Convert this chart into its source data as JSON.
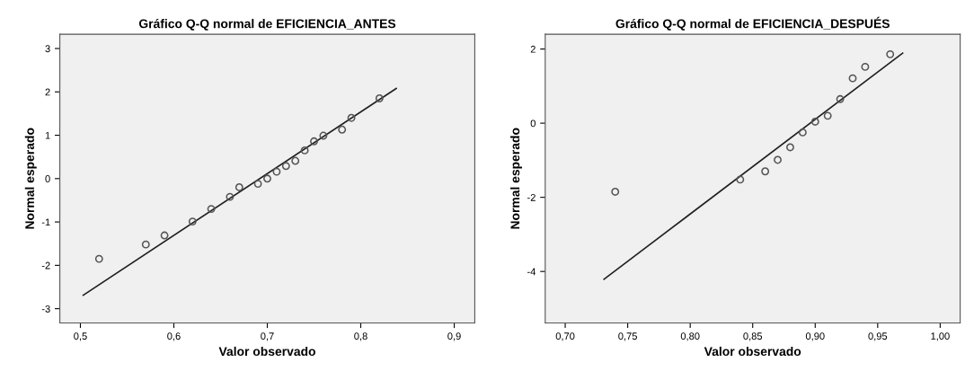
{
  "chart_data": [
    {
      "type": "scatter",
      "title": "Gráfico Q-Q normal de EFICIENCIA_ANTES",
      "xlabel": "Valor observado",
      "ylabel": "Normal esperado",
      "grid": false,
      "legend": false,
      "series": [
        {
          "marker": "circle",
          "color": "#555555",
          "x": [
            0.52,
            0.57,
            0.59,
            0.62,
            0.64,
            0.66,
            0.67,
            0.69,
            0.7,
            0.71,
            0.72,
            0.73,
            0.74,
            0.75,
            0.76,
            0.78,
            0.79,
            0.82
          ],
          "values": [
            -1.85,
            -1.52,
            -1.31,
            -0.99,
            -0.7,
            -0.42,
            -0.2,
            -0.12,
            0.0,
            0.16,
            0.29,
            0.41,
            0.65,
            0.86,
            0.99,
            1.13,
            1.4,
            1.85
          ]
        },
        {
          "type": "line",
          "marker": "none",
          "color": "#222222",
          "x": [
            0.503,
            0.838
          ],
          "values": [
            -2.69,
            2.08
          ]
        }
      ],
      "xlim": [
        0.478,
        0.922
      ],
      "xticks": [
        {
          "value": 0.5,
          "label": "0,5"
        },
        {
          "value": 0.6,
          "label": "0,6"
        },
        {
          "value": 0.7,
          "label": "0,7"
        },
        {
          "value": 0.8,
          "label": "0,8"
        },
        {
          "value": 0.9,
          "label": "0,9"
        }
      ],
      "ylim": [
        -3.33,
        3.33
      ],
      "yticks": [
        -3,
        -2,
        -1,
        0,
        1,
        2,
        3
      ]
    },
    {
      "type": "scatter",
      "title": "Gráfico Q-Q normal de EFICIENCIA_DESPUÉS",
      "xlabel": "Valor observado",
      "ylabel": "Normal esperado",
      "grid": false,
      "legend": false,
      "series": [
        {
          "marker": "circle",
          "color": "#555555",
          "x": [
            0.74,
            0.84,
            0.86,
            0.87,
            0.88,
            0.89,
            0.9,
            0.91,
            0.92,
            0.93,
            0.94,
            0.96
          ],
          "values": [
            -1.85,
            -1.52,
            -1.3,
            -0.99,
            -0.65,
            -0.25,
            0.04,
            0.2,
            0.65,
            1.21,
            1.52,
            1.86
          ]
        },
        {
          "type": "line",
          "marker": "none",
          "color": "#222222",
          "x": [
            0.731,
            0.97
          ],
          "values": [
            -4.21,
            1.89
          ]
        }
      ],
      "xlim": [
        0.684,
        1.016
      ],
      "xticks": [
        {
          "value": 0.7,
          "label": "0,70"
        },
        {
          "value": 0.75,
          "label": "0,75"
        },
        {
          "value": 0.8,
          "label": "0,80"
        },
        {
          "value": 0.85,
          "label": "0,85"
        },
        {
          "value": 0.9,
          "label": "0,90"
        },
        {
          "value": 0.95,
          "label": "0,95"
        },
        {
          "value": 1.0,
          "label": "1,00"
        }
      ],
      "ylim": [
        -5.39,
        2.4
      ],
      "yticks": [
        -4,
        -2,
        0,
        2
      ]
    }
  ]
}
